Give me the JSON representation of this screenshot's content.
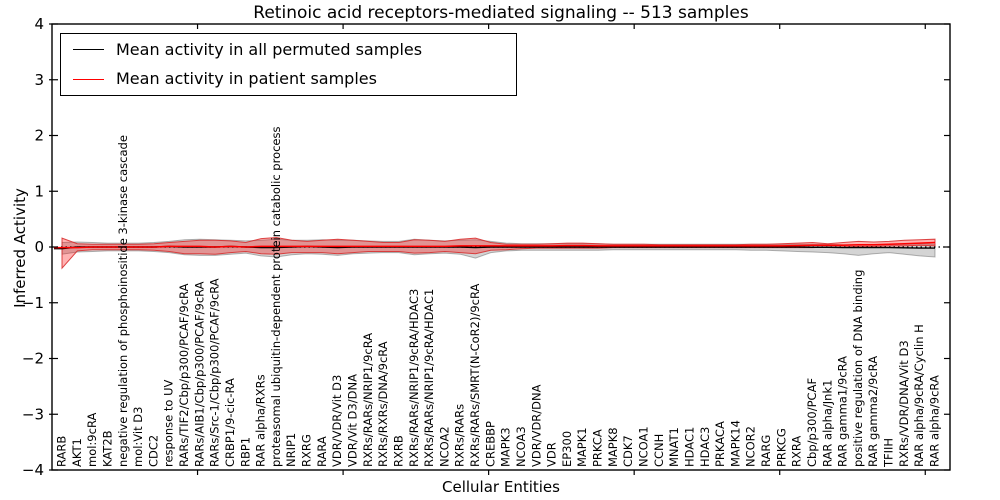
{
  "title": "Retinoic acid receptors-mediated signaling -- 513 samples",
  "axes": {
    "xlabel": "Cellular Entities",
    "ylabel": "Inferred Activity",
    "yticks": [
      "4",
      "3",
      "2",
      "1",
      "0",
      "−1",
      "−2",
      "−3",
      "−4"
    ],
    "ylim": [
      -4,
      4
    ]
  },
  "legend": {
    "entries": [
      {
        "label": "Mean activity in all permuted samples",
        "color": "#000000"
      },
      {
        "label": "Mean activity in patient samples",
        "color": "#ff0000"
      }
    ]
  },
  "colors": {
    "permuted_line": "#000000",
    "patient_line": "#ff0000",
    "permuted_band_fill": "rgba(120,120,120,0.32)",
    "permuted_band_edge": "rgba(90,90,90,0.45)",
    "patient_band_fill": "rgba(255,0,0,0.30)",
    "patient_band_edge": "rgba(215,40,40,0.85)"
  },
  "chart_data": {
    "type": "line",
    "title": "Retinoic acid receptors-mediated signaling -- 513 samples",
    "xlabel": "Cellular Entities",
    "ylabel": "Inferred Activity",
    "ylim": [
      -4,
      4
    ],
    "zero_line": true,
    "legend_position": "upper left",
    "categories": [
      "RARB",
      "AKT1",
      "mol:9cRA",
      "KAT2B",
      "negative regulation of phosphoinositide 3-kinase cascade",
      "mol:Vit D3",
      "CDC2",
      "response to UV",
      "RARs/TIF2/Cbp/p300/PCAF/9cRA",
      "RARs/AIB1/Cbp/p300/PCAF/9cRA",
      "RARs/Src-1/Cbp/p300/PCAF/9cRA",
      "CRBP1/9-cic-RA",
      "RBP1",
      "RAR alpha/RXRs",
      "proteasomal ubiquitin-dependent protein catabolic process",
      "NRIP1",
      "RXRG",
      "RARA",
      "VDR/VDR/Vit D3",
      "VDR/Vit D3/DNA",
      "RXRs/RARs/NRIP1/9cRA",
      "RXRs/RXRs/DNA/9cRA",
      "RXRB",
      "RXRs/RARs/NRIP1/9cRA/HDAC3",
      "RXRs/RARs/NRIP1/9cRA/HDAC1",
      "NCOA2",
      "RXRs/RARs",
      "RXRs/RARs/SMRT(N-CoR2)/9cRA",
      "CREBBP",
      "MAPK3",
      "NCOA3",
      "VDR/VDR/DNA",
      "VDR",
      "EP300",
      "MAPK1",
      "PRKCA",
      "MAPK8",
      "CDK7",
      "NCOA1",
      "CCNH",
      "MNAT1",
      "HDAC1",
      "HDAC3",
      "PRKACA",
      "MAPK14",
      "NCOR2",
      "RARG",
      "PRKCG",
      "RXRA",
      "Cbp/p300/PCAF",
      "RAR alpha/Jnk1",
      "RAR gamma1/9cRA",
      "positive regulation of DNA binding",
      "RAR gamma2/9cRA",
      "TFIIH",
      "RXRs/VDR/DNA/Vit D3",
      "RAR alpha/9cRA/Cyclin H",
      "RAR alpha/9cRA"
    ],
    "series": [
      {
        "name": "Mean activity in all permuted samples",
        "color": "#000000",
        "values": [
          -0.03,
          0,
          0,
          0,
          0,
          0,
          0,
          0.01,
          0,
          0,
          0,
          0.01,
          0,
          -0.01,
          -0.01,
          0,
          0.01,
          0,
          -0.01,
          0,
          0,
          0,
          0,
          0,
          0,
          0,
          0,
          -0.01,
          0,
          0,
          0,
          0,
          0,
          0,
          0,
          0,
          0,
          0,
          0,
          0,
          0,
          0,
          0,
          0,
          0,
          0,
          0,
          0,
          0,
          -0.005,
          -0.005,
          -0.01,
          -0.01,
          -0.01,
          -0.01,
          -0.015,
          -0.02,
          -0.02
        ]
      },
      {
        "name": "Mean activity in patient samples",
        "color": "#ff0000",
        "values": [
          -0.01,
          -0.01,
          0,
          0,
          0,
          0,
          0,
          0.01,
          0.01,
          0.01,
          0,
          0.01,
          0,
          0.01,
          0.01,
          0.01,
          0.01,
          0.01,
          0.01,
          0.01,
          0.01,
          0.01,
          0.01,
          0.01,
          0.01,
          0.01,
          0.02,
          0.02,
          0.02,
          0.02,
          0.02,
          0.02,
          0.02,
          0.025,
          0.025,
          0.02,
          0.02,
          0.02,
          0.02,
          0.02,
          0.02,
          0.02,
          0.02,
          0.02,
          0.02,
          0.02,
          0.02,
          0.02,
          0.025,
          0.03,
          0.03,
          0.03,
          0.04,
          0.04,
          0.05,
          0.06,
          0.07,
          0.08
        ]
      }
    ],
    "bands": [
      {
        "name": "permuted samples range",
        "upper": [
          0.08,
          0.09,
          0.08,
          0.07,
          0.07,
          0.07,
          0.08,
          0.1,
          0.13,
          0.14,
          0.13,
          0.12,
          0.11,
          0.12,
          0.14,
          0.12,
          0.12,
          0.13,
          0.12,
          0.12,
          0.11,
          0.1,
          0.1,
          0.14,
          0.12,
          0.11,
          0.12,
          0.13,
          0.1,
          0.07,
          0.06,
          0.06,
          0.06,
          0.06,
          0.06,
          0.06,
          0.05,
          0.05,
          0.05,
          0.05,
          0.05,
          0.05,
          0.05,
          0.05,
          0.05,
          0.05,
          0.05,
          0.05,
          0.05,
          0.05,
          0.05,
          0.04,
          0.04,
          0.04,
          0.05,
          0.05,
          0.06,
          0.05
        ],
        "lower": [
          -0.13,
          -0.09,
          -0.08,
          -0.07,
          -0.07,
          -0.07,
          -0.08,
          -0.1,
          -0.14,
          -0.15,
          -0.15,
          -0.13,
          -0.11,
          -0.16,
          -0.18,
          -0.14,
          -0.12,
          -0.13,
          -0.15,
          -0.12,
          -0.11,
          -0.1,
          -0.1,
          -0.14,
          -0.12,
          -0.11,
          -0.13,
          -0.2,
          -0.1,
          -0.07,
          -0.06,
          -0.06,
          -0.06,
          -0.06,
          -0.06,
          -0.06,
          -0.05,
          -0.05,
          -0.05,
          -0.05,
          -0.05,
          -0.05,
          -0.05,
          -0.05,
          -0.05,
          -0.06,
          -0.06,
          -0.07,
          -0.08,
          -0.09,
          -0.1,
          -0.12,
          -0.15,
          -0.12,
          -0.1,
          -0.13,
          -0.16,
          -0.18
        ]
      },
      {
        "name": "patient samples range",
        "upper": [
          0.16,
          0.06,
          0.05,
          0.05,
          0.05,
          0.05,
          0.06,
          0.08,
          0.1,
          0.12,
          0.12,
          0.11,
          0.08,
          0.15,
          0.17,
          0.12,
          0.1,
          0.12,
          0.14,
          0.12,
          0.1,
          0.08,
          0.08,
          0.13,
          0.12,
          0.1,
          0.14,
          0.16,
          0.08,
          0.05,
          0.05,
          0.05,
          0.06,
          0.07,
          0.07,
          0.06,
          0.05,
          0.05,
          0.05,
          0.04,
          0.04,
          0.04,
          0.04,
          0.04,
          0.04,
          0.05,
          0.05,
          0.06,
          0.07,
          0.08,
          0.06,
          0.08,
          0.1,
          0.09,
          0.1,
          0.12,
          0.13,
          0.14
        ],
        "lower": [
          -0.38,
          -0.07,
          -0.05,
          -0.05,
          -0.05,
          -0.05,
          -0.06,
          -0.08,
          -0.12,
          -0.12,
          -0.13,
          -0.1,
          -0.08,
          -0.12,
          -0.13,
          -0.1,
          -0.1,
          -0.1,
          -0.12,
          -0.1,
          -0.08,
          -0.08,
          -0.08,
          -0.11,
          -0.1,
          -0.08,
          -0.1,
          -0.12,
          -0.06,
          -0.05,
          -0.03,
          -0.02,
          -0.02,
          -0.02,
          -0.02,
          -0.02,
          -0.01,
          -0.01,
          -0.01,
          -0.01,
          -0.01,
          -0.01,
          -0.01,
          -0.01,
          -0.01,
          -0.01,
          -0.01,
          -0.01,
          -0.01,
          -0.01,
          0.0,
          0.0,
          0.01,
          0.01,
          0.02,
          0.02,
          0.03,
          0.02
        ]
      }
    ]
  }
}
